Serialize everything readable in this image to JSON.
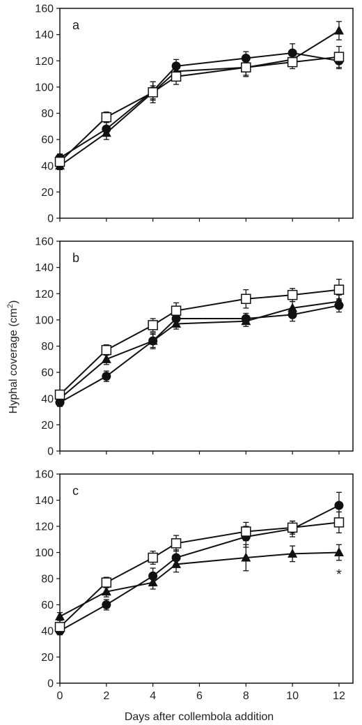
{
  "figure": {
    "ylabel": "Hyphal coverage (cm",
    "ylabel_sup": "2",
    "ylabel_close": ")",
    "xlabel": "Days after collembola addition"
  },
  "chart_data": [
    {
      "type": "line",
      "panel": "a",
      "xlabel": "Days after collembola addition",
      "ylabel": "Hyphal coverage (cm2)",
      "xlim": [
        0,
        12.6
      ],
      "ylim": [
        0,
        160
      ],
      "xticks": [
        0,
        2,
        4,
        6,
        8,
        10,
        12
      ],
      "yticks": [
        0,
        20,
        40,
        60,
        80,
        100,
        120,
        140,
        160
      ],
      "grid": false,
      "series": [
        {
          "marker": "circle",
          "x": [
            0,
            2,
            4,
            5,
            8,
            10,
            12
          ],
          "y": [
            46,
            68,
            97,
            116,
            122,
            126,
            120
          ],
          "err": [
            3,
            5,
            7,
            5,
            5,
            7,
            6
          ]
        },
        {
          "marker": "triangle",
          "x": [
            0,
            2,
            4,
            5,
            8,
            10,
            12
          ],
          "y": [
            40,
            65,
            96,
            112,
            115,
            121,
            143
          ],
          "err": [
            3,
            5,
            8,
            6,
            6,
            5,
            7
          ]
        },
        {
          "marker": "square",
          "x": [
            0,
            2,
            4,
            5,
            8,
            10,
            12
          ],
          "y": [
            43,
            77,
            96,
            108,
            115,
            119,
            123
          ],
          "err": [
            3,
            4,
            5,
            6,
            7,
            5,
            8
          ]
        }
      ],
      "annotations": []
    },
    {
      "type": "line",
      "panel": "b",
      "xlabel": "Days after collembola addition",
      "ylabel": "Hyphal coverage (cm2)",
      "xlim": [
        0,
        12.6
      ],
      "ylim": [
        0,
        160
      ],
      "xticks": [
        0,
        2,
        4,
        6,
        8,
        10,
        12
      ],
      "yticks": [
        0,
        20,
        40,
        60,
        80,
        100,
        120,
        140,
        160
      ],
      "grid": false,
      "series": [
        {
          "marker": "circle",
          "x": [
            0,
            2,
            4,
            5,
            8,
            10,
            12
          ],
          "y": [
            37,
            57,
            84,
            101,
            101,
            104,
            111
          ],
          "err": [
            3,
            4,
            6,
            5,
            4,
            5,
            5
          ]
        },
        {
          "marker": "triangle",
          "x": [
            0,
            2,
            4,
            5,
            8,
            10,
            12
          ],
          "y": [
            40,
            70,
            84,
            97,
            99,
            109,
            114
          ],
          "err": [
            3,
            4,
            5,
            4,
            4,
            5,
            5
          ]
        },
        {
          "marker": "square",
          "x": [
            0,
            2,
            4,
            5,
            8,
            10,
            12
          ],
          "y": [
            43,
            77,
            96,
            107,
            116,
            119,
            123
          ],
          "err": [
            3,
            4,
            5,
            6,
            7,
            5,
            8
          ]
        }
      ],
      "annotations": []
    },
    {
      "type": "line",
      "panel": "c",
      "xlabel": "Days after collembola addition",
      "ylabel": "Hyphal coverage (cm2)",
      "xlim": [
        0,
        12.6
      ],
      "ylim": [
        0,
        160
      ],
      "xticks": [
        0,
        2,
        4,
        6,
        8,
        10,
        12
      ],
      "yticks": [
        0,
        20,
        40,
        60,
        80,
        100,
        120,
        140,
        160
      ],
      "grid": false,
      "series": [
        {
          "marker": "circle",
          "x": [
            0,
            2,
            4,
            5,
            8,
            10,
            12
          ],
          "y": [
            40,
            60,
            82,
            96,
            112,
            118,
            136
          ],
          "err": [
            3,
            4,
            6,
            6,
            8,
            6,
            10
          ]
        },
        {
          "marker": "triangle",
          "x": [
            0,
            2,
            4,
            5,
            8,
            10,
            12
          ],
          "y": [
            51,
            70,
            77,
            91,
            96,
            99,
            100
          ],
          "err": [
            3,
            4,
            5,
            6,
            10,
            6,
            6
          ]
        },
        {
          "marker": "square",
          "x": [
            0,
            2,
            4,
            5,
            8,
            10,
            12
          ],
          "y": [
            43,
            77,
            96,
            107,
            116,
            119,
            123
          ],
          "err": [
            3,
            4,
            5,
            6,
            7,
            5,
            8
          ]
        }
      ],
      "annotations": [
        {
          "text": "*",
          "x": 12,
          "y": 84
        }
      ]
    }
  ]
}
